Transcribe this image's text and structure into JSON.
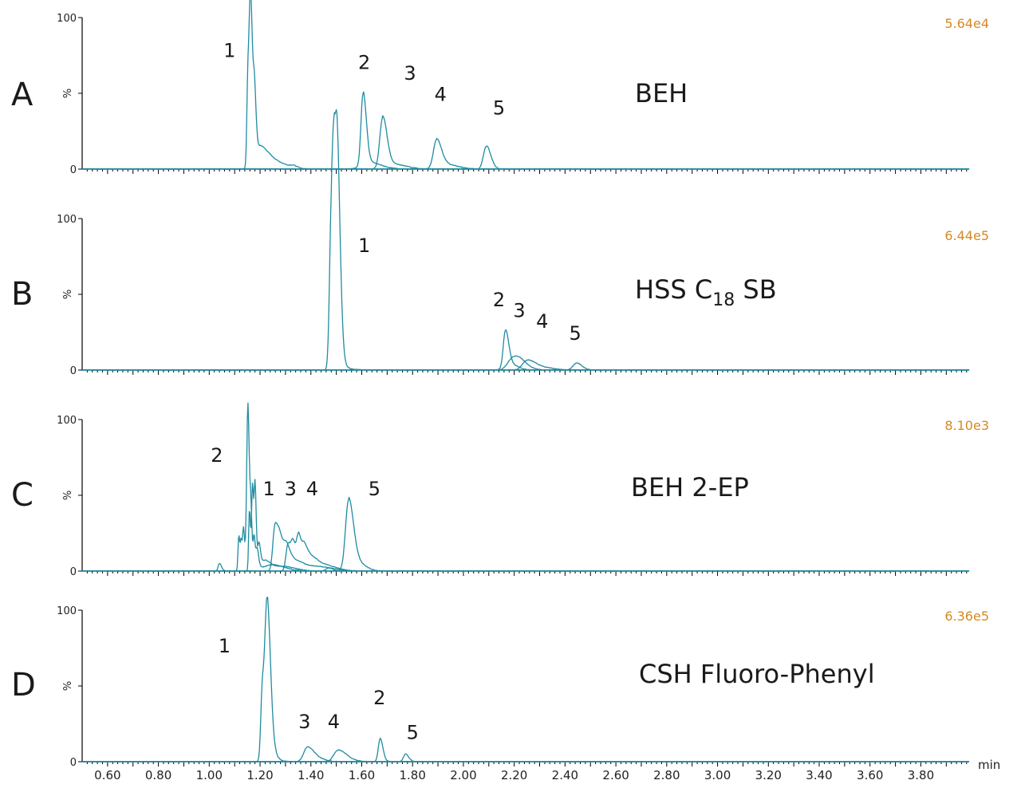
{
  "chart_data": [
    {
      "type": "line",
      "panel": "A",
      "column": "BEH",
      "intensity": "5.64e4",
      "ylabel": "%",
      "yticks": [
        "0",
        "100"
      ],
      "peak_labels": [
        {
          "text": "1",
          "x": 1.08,
          "y": 74
        },
        {
          "text": "2",
          "x": 1.61,
          "y": 66
        },
        {
          "text": "3",
          "x": 1.79,
          "y": 59
        },
        {
          "text": "4",
          "x": 1.91,
          "y": 45
        },
        {
          "text": "5",
          "x": 2.14,
          "y": 36
        }
      ],
      "traces": [
        {
          "peaks": [
            {
              "x": 1.163,
              "y": 100,
              "w": 0.005
            },
            {
              "x": 1.152,
              "y": 60,
              "w": 0.004
            },
            {
              "x": 1.178,
              "y": 35,
              "w": 0.004
            },
            {
              "x": 1.2,
              "y": 12,
              "w": 0.02
            },
            {
              "x": 1.26,
              "y": 4,
              "w": 0.03
            },
            {
              "x": 1.33,
              "y": 1.2,
              "w": 0.01
            }
          ],
          "tail": 0.006
        },
        {
          "peaks": [
            {
              "x": 1.605,
              "y": 47,
              "w": 0.008
            },
            {
              "x": 1.63,
              "y": 4,
              "w": 0.03
            }
          ],
          "tail": 0.004
        },
        {
          "peaks": [
            {
              "x": 1.682,
              "y": 33,
              "w": 0.011
            },
            {
              "x": 1.73,
              "y": 3,
              "w": 0.03
            }
          ],
          "tail": 0.004
        },
        {
          "peaks": [
            {
              "x": 1.894,
              "y": 18,
              "w": 0.012
            },
            {
              "x": 1.93,
              "y": 3,
              "w": 0.03
            }
          ],
          "tail": 0.004
        },
        {
          "peaks": [
            {
              "x": 2.09,
              "y": 15,
              "w": 0.011
            }
          ],
          "tail": 0.004
        }
      ]
    },
    {
      "type": "line",
      "panel": "B",
      "column": "HSS C",
      "column_subscript": "18",
      "column_suffix": " SB",
      "intensity": "6.44e5",
      "ylabel": "%",
      "yticks": [
        "0",
        "100"
      ],
      "peak_labels": [
        {
          "text": "1",
          "x": 1.61,
          "y": 78
        },
        {
          "text": "2",
          "x": 2.14,
          "y": 42
        },
        {
          "text": "3",
          "x": 2.22,
          "y": 35
        },
        {
          "text": "4",
          "x": 2.31,
          "y": 28
        },
        {
          "text": "5",
          "x": 2.44,
          "y": 20
        }
      ],
      "traces": [
        {
          "peaks": [
            {
              "x": 1.48,
              "y": 97,
              "w": 0.007
            },
            {
              "x": 1.492,
              "y": 92,
              "w": 0.007
            },
            {
              "x": 1.505,
              "y": 97,
              "w": 0.007
            },
            {
              "x": 1.515,
              "y": 8,
              "w": 0.008
            }
          ],
          "tail": 0.004
        },
        {
          "peaks": [
            {
              "x": 2.165,
              "y": 23,
              "w": 0.008
            },
            {
              "x": 2.18,
              "y": 4,
              "w": 0.02
            }
          ],
          "tail": 0.003
        },
        {
          "peaks": [
            {
              "x": 2.195,
              "y": 8,
              "w": 0.02
            },
            {
              "x": 2.23,
              "y": 3,
              "w": 0.02
            }
          ],
          "tail": 0.003
        },
        {
          "peaks": [
            {
              "x": 2.25,
              "y": 6,
              "w": 0.018
            },
            {
              "x": 2.3,
              "y": 2,
              "w": 0.03
            }
          ],
          "tail": 0.003
        },
        {
          "peaks": [
            {
              "x": 2.445,
              "y": 4.5,
              "w": 0.014
            }
          ],
          "tail": 0.003
        }
      ]
    },
    {
      "type": "line",
      "panel": "C",
      "column": "BEH 2-EP",
      "intensity": "8.10e3",
      "ylabel": "%",
      "yticks": [
        "0",
        "100"
      ],
      "peak_labels": [
        {
          "text": "2",
          "x": 1.03,
          "y": 72
        },
        {
          "text": "1",
          "x": 1.235,
          "y": 50
        },
        {
          "text": "3",
          "x": 1.32,
          "y": 50
        },
        {
          "text": "4",
          "x": 1.405,
          "y": 50
        },
        {
          "text": "5",
          "x": 1.65,
          "y": 50
        }
      ],
      "traces": [
        {
          "peaks": [
            {
              "x": 1.04,
              "y": 5,
              "w": 0.005
            },
            {
              "x": 1.116,
              "y": 23,
              "w": 0.003
            },
            {
              "x": 1.126,
              "y": 18,
              "w": 0.003
            },
            {
              "x": 1.135,
              "y": 25,
              "w": 0.003
            },
            {
              "x": 1.146,
              "y": 15,
              "w": 0.003
            },
            {
              "x": 1.152,
              "y": 100,
              "w": 0.004
            },
            {
              "x": 1.164,
              "y": 28,
              "w": 0.003
            },
            {
              "x": 1.176,
              "y": 20,
              "w": 0.003
            },
            {
              "x": 1.188,
              "y": 12,
              "w": 0.004
            },
            {
              "x": 1.25,
              "y": 4,
              "w": 0.03
            }
          ],
          "tail": 0.004
        },
        {
          "peaks": [
            {
              "x": 1.158,
              "y": 40,
              "w": 0.003
            },
            {
              "x": 1.17,
              "y": 55,
              "w": 0.003
            },
            {
              "x": 1.18,
              "y": 52,
              "w": 0.003
            },
            {
              "x": 1.195,
              "y": 15,
              "w": 0.004
            },
            {
              "x": 1.22,
              "y": 6,
              "w": 0.015
            },
            {
              "x": 1.29,
              "y": 3,
              "w": 0.03
            }
          ],
          "tail": 0.004
        },
        {
          "peaks": [
            {
              "x": 1.258,
              "y": 29,
              "w": 0.008
            },
            {
              "x": 1.28,
              "y": 18,
              "w": 0.01
            },
            {
              "x": 1.305,
              "y": 12,
              "w": 0.01
            },
            {
              "x": 1.34,
              "y": 6,
              "w": 0.02
            },
            {
              "x": 1.42,
              "y": 3,
              "w": 0.04
            }
          ],
          "tail": 0.004
        },
        {
          "peaks": [
            {
              "x": 1.31,
              "y": 18,
              "w": 0.008
            },
            {
              "x": 1.33,
              "y": 15,
              "w": 0.007
            },
            {
              "x": 1.352,
              "y": 22,
              "w": 0.008
            },
            {
              "x": 1.375,
              "y": 12,
              "w": 0.008
            },
            {
              "x": 1.4,
              "y": 8,
              "w": 0.015
            },
            {
              "x": 1.45,
              "y": 4,
              "w": 0.03
            }
          ],
          "tail": 0.004
        },
        {
          "peaks": [
            {
              "x": 1.548,
              "y": 46,
              "w": 0.012
            },
            {
              "x": 1.585,
              "y": 5,
              "w": 0.02
            },
            {
              "x": 1.47,
              "y": 2,
              "w": 0.01
            }
          ],
          "tail": 0.004
        }
      ]
    },
    {
      "type": "line",
      "panel": "D",
      "column": "CSH Fluoro-Phenyl",
      "intensity": "6.36e5",
      "ylabel": "%",
      "yticks": [
        "0",
        "100"
      ],
      "peak_labels": [
        {
          "text": "1",
          "x": 1.06,
          "y": 72
        },
        {
          "text": "3",
          "x": 1.375,
          "y": 22
        },
        {
          "text": "4",
          "x": 1.49,
          "y": 22
        },
        {
          "text": "2",
          "x": 1.67,
          "y": 38
        },
        {
          "text": "5",
          "x": 1.8,
          "y": 15
        }
      ],
      "traces": [
        {
          "peaks": [
            {
              "x": 1.228,
              "y": 100,
              "w": 0.008
            },
            {
              "x": 1.209,
              "y": 48,
              "w": 0.006
            },
            {
              "x": 1.25,
              "y": 5,
              "w": 0.01
            }
          ],
          "tail": 0.004
        },
        {
          "peaks": [
            {
              "x": 1.385,
              "y": 9,
              "w": 0.014
            },
            {
              "x": 1.42,
              "y": 2.5,
              "w": 0.02
            }
          ],
          "tail": 0.003
        },
        {
          "peaks": [
            {
              "x": 1.505,
              "y": 7,
              "w": 0.016
            },
            {
              "x": 1.54,
              "y": 2,
              "w": 0.02
            }
          ],
          "tail": 0.003
        },
        {
          "peaks": [
            {
              "x": 1.672,
              "y": 15,
              "w": 0.007
            }
          ],
          "tail": 0.003
        },
        {
          "peaks": [
            {
              "x": 1.772,
              "y": 5,
              "w": 0.008
            }
          ],
          "tail": 0.003
        }
      ]
    }
  ],
  "x_axis": {
    "unit_label": "min",
    "range": [
      0.5,
      3.99
    ],
    "tick_labels": [
      "0.60",
      "0.80",
      "1.00",
      "1.20",
      "1.40",
      "1.60",
      "1.80",
      "2.00",
      "2.20",
      "2.40",
      "2.60",
      "2.80",
      "3.00",
      "3.20",
      "3.40",
      "3.60",
      "3.80"
    ],
    "tick_values": [
      0.6,
      0.8,
      1.0,
      1.2,
      1.4,
      1.6,
      1.8,
      2.0,
      2.2,
      2.4,
      2.6,
      2.8,
      3.0,
      3.2,
      3.4,
      3.6,
      3.8
    ]
  },
  "colors": {
    "trace": "#1f8ca0",
    "intensity": "#d48a22",
    "axis": "#000000"
  }
}
